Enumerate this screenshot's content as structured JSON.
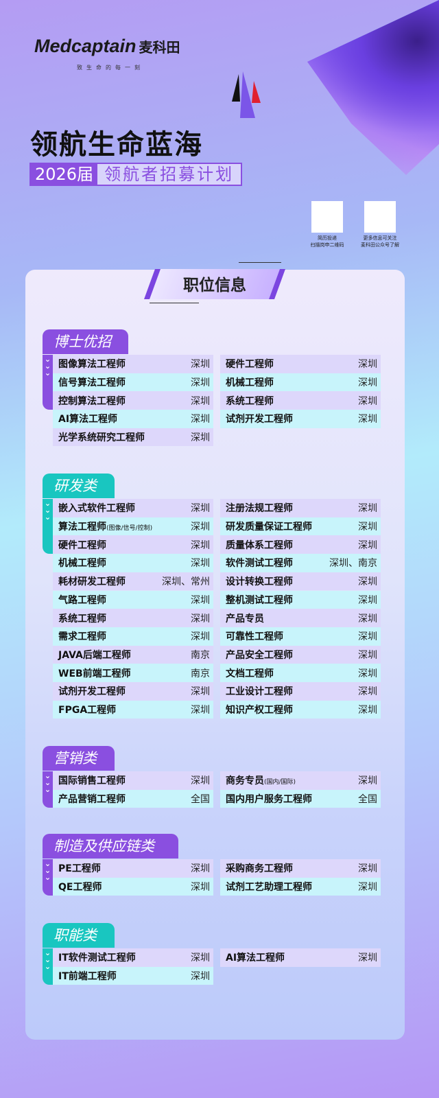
{
  "brand": {
    "logo": "Medcaptain",
    "logo_cn": "麦科田",
    "slogan": "致生命的每一刻"
  },
  "headline": "领航生命蓝海",
  "subtitle": {
    "year": "2026届",
    "text": "领航者招募计划"
  },
  "qr": [
    {
      "caption1": "简历投递",
      "caption2": "扫描岗申二维码"
    },
    {
      "caption1": "更多信息可关注",
      "caption2": "麦科田公众号了解"
    }
  ],
  "section_title": "职位信息",
  "colors": {
    "purple": "#8a4fe0",
    "teal": "#19c6c0",
    "row_a": "#ddd7fb",
    "row_b": "#c8f4fb"
  },
  "sections": [
    {
      "name": "博士优招",
      "color": "purple",
      "left": [
        [
          "图像算法工程师",
          "",
          "深圳"
        ],
        [
          "信号算法工程师",
          "",
          "深圳"
        ],
        [
          "控制算法工程师",
          "",
          "深圳"
        ],
        [
          "AI算法工程师",
          "",
          "深圳"
        ],
        [
          "光学系统研究工程师",
          "",
          "深圳"
        ]
      ],
      "right": [
        [
          "硬件工程师",
          "",
          "深圳"
        ],
        [
          "机械工程师",
          "",
          "深圳"
        ],
        [
          "系统工程师",
          "",
          "深圳"
        ],
        [
          "试剂开发工程师",
          "",
          "深圳"
        ]
      ]
    },
    {
      "name": "研发类",
      "color": "teal",
      "left": [
        [
          "嵌入式软件工程师",
          "",
          "深圳"
        ],
        [
          "算法工程师",
          "(图像/信号/控制)",
          "深圳"
        ],
        [
          "硬件工程师",
          "",
          "深圳"
        ],
        [
          "机械工程师",
          "",
          "深圳"
        ],
        [
          "耗材研发工程师",
          "",
          "深圳、常州"
        ],
        [
          "气路工程师",
          "",
          "深圳"
        ],
        [
          "系统工程师",
          "",
          "深圳"
        ],
        [
          "需求工程师",
          "",
          "深圳"
        ],
        [
          "JAVA后端工程师",
          "",
          "南京"
        ],
        [
          "WEB前端工程师",
          "",
          "南京"
        ],
        [
          "试剂开发工程师",
          "",
          "深圳"
        ],
        [
          "FPGA工程师",
          "",
          "深圳"
        ]
      ],
      "right": [
        [
          "注册法规工程师",
          "",
          "深圳"
        ],
        [
          "研发质量保证工程师",
          "",
          "深圳"
        ],
        [
          "质量体系工程师",
          "",
          "深圳"
        ],
        [
          "软件测试工程师",
          "",
          "深圳、南京"
        ],
        [
          "设计转换工程师",
          "",
          "深圳"
        ],
        [
          "整机测试工程师",
          "",
          "深圳"
        ],
        [
          "产品专员",
          "",
          "深圳"
        ],
        [
          "可靠性工程师",
          "",
          "深圳"
        ],
        [
          "产品安全工程师",
          "",
          "深圳"
        ],
        [
          "文档工程师",
          "",
          "深圳"
        ],
        [
          "工业设计工程师",
          "",
          "深圳"
        ],
        [
          "知识产权工程师",
          "",
          "深圳"
        ]
      ]
    },
    {
      "name": "营销类",
      "color": "purple",
      "left": [
        [
          "国际销售工程师",
          "",
          "深圳"
        ],
        [
          "产品营销工程师",
          "",
          "全国"
        ]
      ],
      "right": [
        [
          "商务专员",
          "(国内/国际)",
          "深圳"
        ],
        [
          "国内用户服务工程师",
          "",
          "全国"
        ]
      ]
    },
    {
      "name": "制造及供应链类",
      "color": "purple",
      "left": [
        [
          "PE工程师",
          "",
          "深圳"
        ],
        [
          "QE工程师",
          "",
          "深圳"
        ]
      ],
      "right": [
        [
          "采购商务工程师",
          "",
          "深圳"
        ],
        [
          "试剂工艺助理工程师",
          "",
          "深圳"
        ]
      ]
    },
    {
      "name": "职能类",
      "color": "teal",
      "left": [
        [
          "IT软件测试工程师",
          "",
          "深圳"
        ],
        [
          "IT前端工程师",
          "",
          "深圳"
        ]
      ],
      "right": [
        [
          "AI算法工程师",
          "",
          "深圳"
        ]
      ]
    }
  ]
}
